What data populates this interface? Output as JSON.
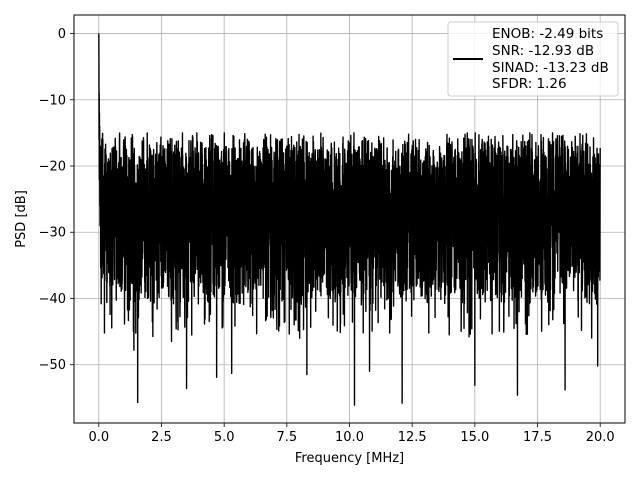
{
  "chart_data": {
    "type": "line",
    "title": "",
    "xlabel": "Frequency [MHz]",
    "ylabel": "PSD [dB]",
    "xlim": [
      -0.99,
      20.99
    ],
    "ylim": [
      -58.8,
      2.8
    ],
    "grid": true,
    "x_ticks": [
      0.0,
      2.5,
      5.0,
      7.5,
      10.0,
      12.5,
      15.0,
      17.5,
      20.0
    ],
    "x_tick_labels": [
      "0.0",
      "2.5",
      "5.0",
      "7.5",
      "10.0",
      "12.5",
      "15.0",
      "17.5",
      "20.0"
    ],
    "y_ticks": [
      0,
      -10,
      -20,
      -30,
      -40,
      -50
    ],
    "y_tick_labels": [
      "0",
      "−10",
      "−20",
      "−30",
      "−40",
      "−50"
    ],
    "legend": {
      "placement": "top-right",
      "lines": [
        "ENOB: -2.49 bits",
        "SNR: -12.93 dB",
        "SINAD: -13.23 dB",
        "SFDR: 1.26"
      ]
    },
    "series": [
      {
        "color": "#000000",
        "x_range": [
          0.0,
          20.0
        ],
        "peak": {
          "x": 0.0,
          "y": 0.0
        },
        "noise_floor_mean": -26,
        "upper_envelope": -16,
        "lower_envelope": -40,
        "notable_dips": [
          {
            "x": 0.32,
            "y": -40.6
          },
          {
            "x": 1.4,
            "y": -47.8
          },
          {
            "x": 1.55,
            "y": -55.7
          },
          {
            "x": 2.9,
            "y": -46.5
          },
          {
            "x": 3.5,
            "y": -53.6
          },
          {
            "x": 4.7,
            "y": -51.9
          },
          {
            "x": 5.3,
            "y": -51.3
          },
          {
            "x": 8.3,
            "y": -51.5
          },
          {
            "x": 10.2,
            "y": -56.1
          },
          {
            "x": 10.8,
            "y": -51.0
          },
          {
            "x": 12.1,
            "y": -55.8
          },
          {
            "x": 15.0,
            "y": -53.1
          },
          {
            "x": 16.7,
            "y": -54.6
          },
          {
            "x": 18.6,
            "y": -53.8
          },
          {
            "x": 19.9,
            "y": -50.2
          }
        ]
      }
    ]
  }
}
